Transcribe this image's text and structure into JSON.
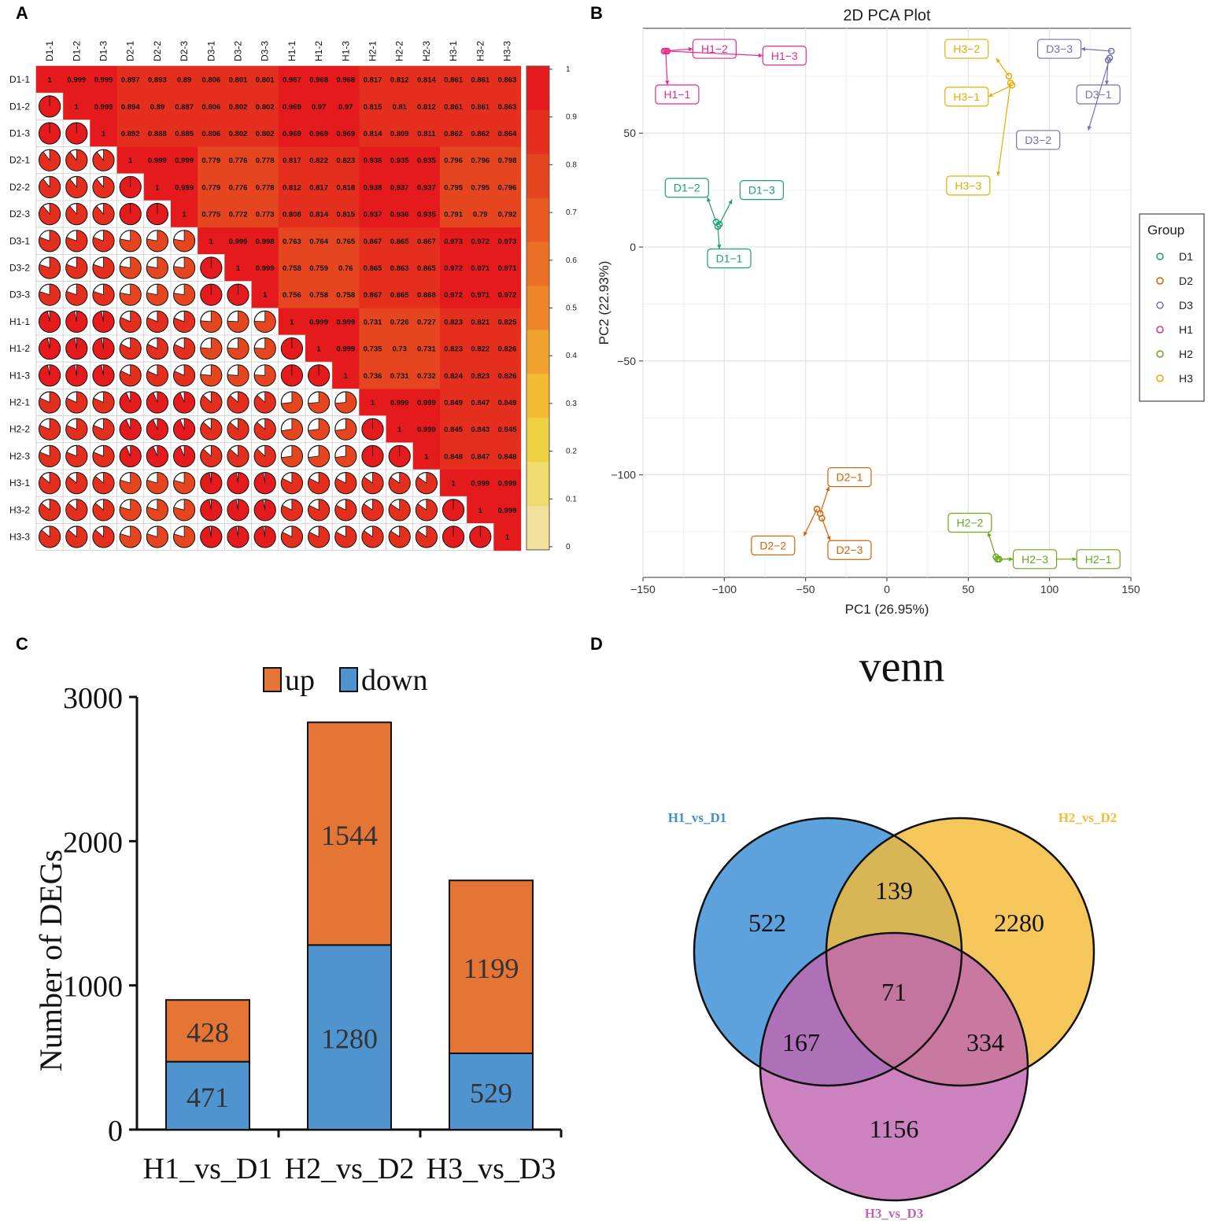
{
  "panels": [
    "A",
    "B",
    "C",
    "D"
  ],
  "chart_data": [
    {
      "type": "heatmap",
      "panel": "A",
      "title": "",
      "samples": [
        "D1-1",
        "D1-2",
        "D1-3",
        "D2-1",
        "D2-2",
        "D2-3",
        "D3-1",
        "D3-2",
        "D3-3",
        "H1-1",
        "H1-2",
        "H1-3",
        "H2-1",
        "H2-2",
        "H2-3",
        "H3-1",
        "H3-2",
        "H3-3"
      ],
      "matrix": [
        [
          "1",
          "0.999",
          "0.999",
          "0.897",
          "0.893",
          "0.89",
          "0.806",
          "0.801",
          "0.801",
          "0.967",
          "0.968",
          "0.968",
          "0.817",
          "0.812",
          "0.814",
          "0.861",
          "0.861",
          "0.863"
        ],
        [
          "0.999",
          "1",
          "0.999",
          "0.894",
          "0.89",
          "0.887",
          "0.806",
          "0.802",
          "0.802",
          "0.969",
          "0.97",
          "0.97",
          "0.815",
          "0.81",
          "0.812",
          "0.861",
          "0.861",
          "0.863"
        ],
        [
          "0.999",
          "0.999",
          "1",
          "0.892",
          "0.888",
          "0.885",
          "0.806",
          "0.802",
          "0.802",
          "0.969",
          "0.969",
          "0.969",
          "0.814",
          "0.809",
          "0.811",
          "0.862",
          "0.862",
          "0.864"
        ],
        [
          "0.897",
          "0.894",
          "0.892",
          "1",
          "0.999",
          "0.999",
          "0.779",
          "0.776",
          "0.778",
          "0.817",
          "0.822",
          "0.823",
          "0.936",
          "0.935",
          "0.935",
          "0.796",
          "0.796",
          "0.798"
        ],
        [
          "0.893",
          "0.89",
          "0.888",
          "0.999",
          "1",
          "0.999",
          "0.779",
          "0.776",
          "0.778",
          "0.812",
          "0.817",
          "0.818",
          "0.938",
          "0.937",
          "0.937",
          "0.795",
          "0.795",
          "0.796"
        ],
        [
          "0.89",
          "0.887",
          "0.885",
          "0.999",
          "0.999",
          "1",
          "0.775",
          "0.772",
          "0.773",
          "0.808",
          "0.814",
          "0.815",
          "0.937",
          "0.936",
          "0.935",
          "0.791",
          "0.79",
          "0.792"
        ],
        [
          "0.806",
          "0.806",
          "0.806",
          "0.779",
          "0.779",
          "0.775",
          "1",
          "0.999",
          "0.998",
          "0.763",
          "0.764",
          "0.765",
          "0.867",
          "0.865",
          "0.867",
          "0.973",
          "0.972",
          "0.973"
        ],
        [
          "0.801",
          "0.802",
          "0.802",
          "0.776",
          "0.776",
          "0.772",
          "0.999",
          "1",
          "0.999",
          "0.758",
          "0.759",
          "0.76",
          "0.865",
          "0.863",
          "0.865",
          "0.972",
          "0.971",
          "0.971"
        ],
        [
          "0.801",
          "0.802",
          "0.802",
          "0.778",
          "0.778",
          "0.773",
          "0.998",
          "0.999",
          "1",
          "0.756",
          "0.758",
          "0.758",
          "0.867",
          "0.865",
          "0.868",
          "0.972",
          "0.971",
          "0.972"
        ],
        [
          "0.967",
          "0.969",
          "0.969",
          "0.817",
          "0.812",
          "0.808",
          "0.763",
          "0.758",
          "0.756",
          "1",
          "0.999",
          "0.999",
          "0.731",
          "0.726",
          "0.727",
          "0.823",
          "0.821",
          "0.825"
        ],
        [
          "0.968",
          "0.97",
          "0.969",
          "0.822",
          "0.817",
          "0.814",
          "0.764",
          "0.759",
          "0.758",
          "0.999",
          "1",
          "0.999",
          "0.735",
          "0.73",
          "0.731",
          "0.823",
          "0.822",
          "0.826"
        ],
        [
          "0.968",
          "0.97",
          "0.969",
          "0.823",
          "0.818",
          "0.815",
          "0.765",
          "0.76",
          "0.758",
          "0.999",
          "0.999",
          "1",
          "0.736",
          "0.731",
          "0.732",
          "0.824",
          "0.823",
          "0.826"
        ],
        [
          "0.817",
          "0.815",
          "0.814",
          "0.936",
          "0.938",
          "0.937",
          "0.867",
          "0.865",
          "0.867",
          "0.731",
          "0.735",
          "0.736",
          "1",
          "0.999",
          "0.999",
          "0.849",
          "0.847",
          "0.849"
        ],
        [
          "0.812",
          "0.81",
          "0.809",
          "0.935",
          "0.937",
          "0.936",
          "0.865",
          "0.863",
          "0.865",
          "0.726",
          "0.73",
          "0.731",
          "0.999",
          "1",
          "0.999",
          "0.845",
          "0.843",
          "0.845"
        ],
        [
          "0.814",
          "0.812",
          "0.811",
          "0.935",
          "0.937",
          "0.935",
          "0.867",
          "0.865",
          "0.868",
          "0.727",
          "0.731",
          "0.732",
          "0.999",
          "0.999",
          "1",
          "0.848",
          "0.847",
          "0.848"
        ],
        [
          "0.861",
          "0.861",
          "0.862",
          "0.796",
          "0.795",
          "0.791",
          "0.973",
          "0.972",
          "0.972",
          "0.823",
          "0.823",
          "0.824",
          "0.849",
          "0.845",
          "0.848",
          "1",
          "0.999",
          "0.999"
        ],
        [
          "0.861",
          "0.861",
          "0.862",
          "0.796",
          "0.795",
          "0.79",
          "0.972",
          "0.971",
          "0.971",
          "0.821",
          "0.822",
          "0.823",
          "0.847",
          "0.843",
          "0.847",
          "0.999",
          "1",
          "0.999"
        ],
        [
          "0.863",
          "0.863",
          "0.864",
          "0.798",
          "0.796",
          "0.792",
          "0.973",
          "0.971",
          "0.972",
          "0.825",
          "0.826",
          "0.826",
          "0.849",
          "0.845",
          "0.848",
          "0.999",
          "0.999",
          "1"
        ]
      ],
      "colorbar_ticks": [
        "1",
        "0.9",
        "0.8",
        "0.7",
        "0.6",
        "0.5",
        "0.4",
        "0.3",
        "0.2",
        "0.1",
        "0"
      ],
      "colorbar_colors": [
        "#e41a1c",
        "#e42f1e",
        "#e6461f",
        "#e85a22",
        "#eb6f25",
        "#ee8529",
        "#f1a12d",
        "#f2bb32",
        "#eed043",
        "#eedd6e",
        "#f3e09a"
      ]
    },
    {
      "type": "scatter",
      "panel": "B",
      "title": "2D PCA Plot",
      "xlabel": "PC1 (26.95%)",
      "ylabel": "PC2 (22.93%)",
      "xlim": [
        -150,
        150
      ],
      "ylim": [
        -145,
        96
      ],
      "xticks": [
        -150,
        -100,
        -50,
        0,
        50,
        100,
        150
      ],
      "xtick_labels": [
        "−150",
        "−100",
        "−50",
        "0",
        "50",
        "100",
        "150"
      ],
      "yticks": [
        50,
        0,
        -50,
        -100
      ],
      "ytick_labels": [
        "50",
        "0",
        "−50",
        "−100"
      ],
      "legend_title": "Group",
      "legend_position": "right",
      "groups": [
        {
          "name": "D1",
          "color": "#1b9e77"
        },
        {
          "name": "D2",
          "color": "#d95f02"
        },
        {
          "name": "D3",
          "color": "#7570b3"
        },
        {
          "name": "H1",
          "color": "#e7298a"
        },
        {
          "name": "H2",
          "color": "#66a61e"
        },
        {
          "name": "H3",
          "color": "#e6ab02"
        }
      ],
      "points": [
        {
          "label": "D1−1",
          "group": "D1",
          "x": -104,
          "y": 9,
          "lx": -97,
          "ly": -5
        },
        {
          "label": "D1−2",
          "group": "D1",
          "x": -105,
          "y": 11,
          "lx": -123,
          "ly": 26
        },
        {
          "label": "D1−3",
          "group": "D1",
          "x": -103,
          "y": 10,
          "lx": -77,
          "ly": 25
        },
        {
          "label": "D2−1",
          "group": "D2",
          "x": -41,
          "y": -117,
          "lx": -23,
          "ly": -101
        },
        {
          "label": "D2−2",
          "group": "D2",
          "x": -43,
          "y": -115,
          "lx": -70,
          "ly": -131
        },
        {
          "label": "D2−3",
          "group": "D2",
          "x": -40,
          "y": -119,
          "lx": -23,
          "ly": -133
        },
        {
          "label": "D3−1",
          "group": "D3",
          "x": 136,
          "y": 82,
          "lx": 130,
          "ly": 67
        },
        {
          "label": "D3−2",
          "group": "D3",
          "x": 137,
          "y": 83,
          "lx": 93,
          "ly": 47
        },
        {
          "label": "D3−3",
          "group": "D3",
          "x": 138,
          "y": 86,
          "lx": 106,
          "ly": 87
        },
        {
          "label": "H1−1",
          "group": "H1",
          "x": -136,
          "y": 86,
          "lx": -129,
          "ly": 67
        },
        {
          "label": "H1−2",
          "group": "H1",
          "x": -137,
          "y": 86,
          "lx": -106,
          "ly": 87
        },
        {
          "label": "H1−3",
          "group": "H1",
          "x": -135,
          "y": 86,
          "lx": -63,
          "ly": 84
        },
        {
          "label": "H2−1",
          "group": "H2",
          "x": 68,
          "y": -137,
          "lx": 130,
          "ly": -137
        },
        {
          "label": "H2−2",
          "group": "H2",
          "x": 67,
          "y": -136,
          "lx": 51,
          "ly": -121
        },
        {
          "label": "H2−3",
          "group": "H2",
          "x": 69,
          "y": -137,
          "lx": 91,
          "ly": -137
        },
        {
          "label": "H3−1",
          "group": "H3",
          "x": 77,
          "y": 71,
          "lx": 49,
          "ly": 66
        },
        {
          "label": "H3−2",
          "group": "H3",
          "x": 75,
          "y": 75,
          "lx": 49,
          "ly": 87
        },
        {
          "label": "H3−3",
          "group": "H3",
          "x": 76,
          "y": 72,
          "lx": 50,
          "ly": 27
        }
      ]
    },
    {
      "type": "bar",
      "stacked": true,
      "panel": "C",
      "title": "",
      "categories": [
        "H1_vs_D1",
        "H2_vs_D2",
        "H3_vs_D3"
      ],
      "series": [
        {
          "name": "down",
          "color": "#4f93cf",
          "values": [
            471,
            1280,
            529
          ]
        },
        {
          "name": "up",
          "color": "#e57535",
          "values": [
            428,
            1544,
            1199
          ]
        }
      ],
      "ylabel": "Number of DEGs",
      "xlabel": "",
      "ylim": [
        0,
        3000
      ],
      "yticks": [
        0,
        1000,
        2000,
        3000
      ],
      "legend_position": "top",
      "legend_order": [
        "up",
        "down"
      ]
    },
    {
      "type": "venn",
      "panel": "D",
      "title": "venn",
      "sets": [
        {
          "name": "H1_vs_D1",
          "color": "#3b8ed6"
        },
        {
          "name": "H2_vs_D2",
          "color": "#f3bb37"
        },
        {
          "name": "H3_vs_D3",
          "color": "#c066b0"
        }
      ],
      "regions": [
        {
          "sets": [
            "H1_vs_D1"
          ],
          "value": 522
        },
        {
          "sets": [
            "H2_vs_D2"
          ],
          "value": 2280
        },
        {
          "sets": [
            "H3_vs_D3"
          ],
          "value": 1156
        },
        {
          "sets": [
            "H1_vs_D1",
            "H2_vs_D2"
          ],
          "value": 139
        },
        {
          "sets": [
            "H1_vs_D1",
            "H3_vs_D3"
          ],
          "value": 167
        },
        {
          "sets": [
            "H2_vs_D2",
            "H3_vs_D3"
          ],
          "value": 334
        },
        {
          "sets": [
            "H1_vs_D1",
            "H2_vs_D2",
            "H3_vs_D3"
          ],
          "value": 71
        }
      ]
    }
  ]
}
